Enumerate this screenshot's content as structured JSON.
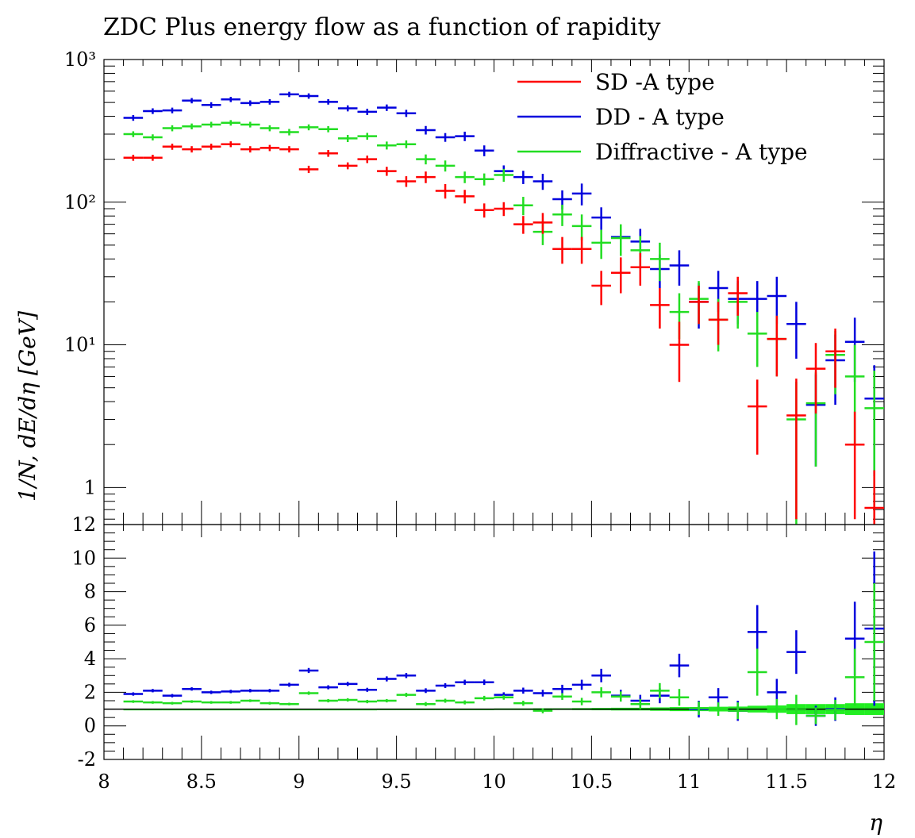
{
  "chart_data": [
    {
      "type": "scatter",
      "title": "ZDC Plus energy flow as a function of rapidity",
      "ylabel": "1/N, dE/dη [GeV]",
      "yscale": "log",
      "ylim": [
        0.55,
        1000
      ],
      "xlim": [
        8,
        12
      ],
      "yticks": [
        "10³",
        "10²",
        "10¹",
        "1"
      ],
      "ytick_values": [
        1000,
        100,
        10,
        1
      ],
      "grid": false,
      "legend": "top-right",
      "colors": {
        "SD -A type": "#ff0000",
        "DD - A type": "#0000dd",
        "Diffractive - A type": "#22dd22"
      },
      "series": [
        {
          "name": "SD -A type",
          "color": "#ff0000",
          "x": [
            8.15,
            8.25,
            8.35,
            8.45,
            8.55,
            8.65,
            8.75,
            8.85,
            8.95,
            9.05,
            9.15,
            9.25,
            9.35,
            9.45,
            9.55,
            9.65,
            9.75,
            9.85,
            9.95,
            10.05,
            10.15,
            10.25,
            10.35,
            10.45,
            10.55,
            10.65,
            10.75,
            10.85,
            10.95,
            11.05,
            11.15,
            11.25,
            11.35,
            11.45,
            11.55,
            11.65,
            11.75,
            11.85,
            11.95
          ],
          "y": [
            205,
            205,
            245,
            235,
            245,
            255,
            235,
            240,
            235,
            170,
            220,
            180,
            200,
            165,
            140,
            150,
            120,
            110,
            88,
            90,
            70,
            72,
            47,
            47,
            26,
            32,
            35,
            19,
            10,
            20,
            15,
            23,
            3.7,
            11,
            3.2,
            6.8,
            9,
            2,
            0.72
          ],
          "yerr": [
            10,
            10,
            12,
            12,
            12,
            12,
            12,
            12,
            12,
            10,
            12,
            10,
            12,
            12,
            12,
            14,
            14,
            12,
            10,
            10,
            10,
            12,
            10,
            10,
            7,
            9,
            9,
            6,
            4.5,
            6,
            5,
            7,
            2,
            5,
            2.6,
            3.5,
            4,
            1.4,
            0.6
          ]
        },
        {
          "name": "DD - A type",
          "color": "#0000dd",
          "x": [
            8.15,
            8.25,
            8.35,
            8.45,
            8.55,
            8.65,
            8.75,
            8.85,
            8.95,
            9.05,
            9.15,
            9.25,
            9.35,
            9.45,
            9.55,
            9.65,
            9.75,
            9.85,
            9.95,
            10.05,
            10.15,
            10.25,
            10.35,
            10.45,
            10.55,
            10.65,
            10.75,
            10.85,
            10.95,
            11.05,
            11.15,
            11.25,
            11.35,
            11.45,
            11.55,
            11.65,
            11.75,
            11.85,
            11.95
          ],
          "y": [
            390,
            435,
            440,
            515,
            480,
            525,
            495,
            505,
            570,
            555,
            505,
            455,
            430,
            460,
            420,
            320,
            285,
            290,
            230,
            165,
            150,
            140,
            105,
            115,
            78,
            57,
            53,
            34,
            36,
            20,
            25,
            21,
            21,
            22,
            14,
            3.8,
            7.8,
            10.5,
            4.2
          ],
          "yerr": [
            18,
            20,
            20,
            22,
            22,
            22,
            22,
            22,
            24,
            24,
            22,
            22,
            22,
            24,
            24,
            22,
            20,
            22,
            20,
            16,
            16,
            18,
            16,
            20,
            14,
            12,
            12,
            9,
            10,
            7,
            8,
            7,
            7,
            8,
            6,
            2.4,
            4,
            5,
            3
          ]
        },
        {
          "name": "Diffractive - A type",
          "color": "#22dd22",
          "x": [
            8.15,
            8.25,
            8.35,
            8.45,
            8.55,
            8.65,
            8.75,
            8.85,
            8.95,
            9.05,
            9.15,
            9.25,
            9.35,
            9.45,
            9.55,
            9.65,
            9.75,
            9.85,
            9.95,
            10.05,
            10.15,
            10.25,
            10.35,
            10.45,
            10.55,
            10.65,
            10.75,
            10.85,
            10.95,
            11.05,
            11.15,
            11.25,
            11.35,
            11.45,
            11.55,
            11.65,
            11.75,
            11.85,
            11.95
          ],
          "y": [
            300,
            285,
            330,
            340,
            350,
            360,
            350,
            330,
            310,
            335,
            325,
            280,
            290,
            250,
            255,
            200,
            180,
            150,
            145,
            155,
            95,
            62,
            82,
            68,
            52,
            56,
            46,
            40,
            17,
            21,
            15,
            20,
            12,
            11,
            3.0,
            3.9,
            8.5,
            6,
            3.6
          ],
          "yerr": [
            14,
            14,
            16,
            16,
            16,
            16,
            16,
            16,
            16,
            16,
            16,
            16,
            16,
            16,
            16,
            16,
            16,
            14,
            14,
            16,
            14,
            12,
            14,
            14,
            12,
            14,
            12,
            12,
            6,
            7,
            6,
            7,
            5,
            5,
            2.5,
            2.5,
            4,
            4,
            3
          ]
        }
      ]
    },
    {
      "type": "scatter",
      "title": "",
      "xlabel": "η",
      "xlim": [
        8,
        12
      ],
      "ylim": [
        -2,
        12
      ],
      "xticks": [
        "8",
        "8.5",
        "9",
        "9.5",
        "10",
        "10.5",
        "11",
        "11.5",
        "12"
      ],
      "xtick_values": [
        8,
        8.5,
        9,
        9.5,
        10,
        10.5,
        11,
        11.5,
        12
      ],
      "yticks": [
        "12",
        "10",
        "8",
        "6",
        "4",
        "2",
        "0",
        "-2"
      ],
      "ytick_values": [
        12,
        10,
        8,
        6,
        4,
        2,
        0,
        -2
      ],
      "reference_line": 1,
      "band_color": "#22ee22",
      "band_halfwidth": [
        0.02,
        0.02,
        0.02,
        0.02,
        0.02,
        0.02,
        0.02,
        0.02,
        0.02,
        0.02,
        0.02,
        0.02,
        0.02,
        0.03,
        0.03,
        0.03,
        0.03,
        0.03,
        0.03,
        0.04,
        0.04,
        0.05,
        0.05,
        0.06,
        0.07,
        0.08,
        0.08,
        0.1,
        0.12,
        0.12,
        0.14,
        0.15,
        0.2,
        0.22,
        0.3,
        0.3,
        0.3,
        0.35,
        0.35
      ],
      "series": [
        {
          "name": "DD - A type",
          "color": "#0000dd",
          "x": [
            8.15,
            8.25,
            8.35,
            8.45,
            8.55,
            8.65,
            8.75,
            8.85,
            8.95,
            9.05,
            9.15,
            9.25,
            9.35,
            9.45,
            9.55,
            9.65,
            9.75,
            9.85,
            9.95,
            10.05,
            10.15,
            10.25,
            10.35,
            10.45,
            10.55,
            10.65,
            10.75,
            10.85,
            10.95,
            11.05,
            11.15,
            11.25,
            11.35,
            11.45,
            11.55,
            11.65,
            11.75,
            11.85,
            11.95
          ],
          "y": [
            1.9,
            2.1,
            1.8,
            2.2,
            2.0,
            2.05,
            2.1,
            2.1,
            2.45,
            3.3,
            2.3,
            2.5,
            2.15,
            2.8,
            3.0,
            2.1,
            2.4,
            2.6,
            2.6,
            1.85,
            2.1,
            1.95,
            2.2,
            2.45,
            3.0,
            1.8,
            1.5,
            1.8,
            3.6,
            1.0,
            1.7,
            0.9,
            5.6,
            2.0,
            4.4,
            0.6,
            1.0,
            5.2,
            5.8
          ],
          "yerr": [
            0.1,
            0.1,
            0.1,
            0.1,
            0.1,
            0.1,
            0.1,
            0.1,
            0.12,
            0.15,
            0.12,
            0.12,
            0.12,
            0.15,
            0.15,
            0.14,
            0.14,
            0.15,
            0.16,
            0.15,
            0.18,
            0.2,
            0.25,
            0.3,
            0.4,
            0.35,
            0.35,
            0.45,
            0.7,
            0.5,
            0.55,
            0.6,
            1.6,
            0.8,
            1.3,
            0.6,
            0.7,
            2.2,
            4.6
          ]
        },
        {
          "name": "Diffractive - A type",
          "color": "#22dd22",
          "x": [
            8.15,
            8.25,
            8.35,
            8.45,
            8.55,
            8.65,
            8.75,
            8.85,
            8.95,
            9.05,
            9.15,
            9.25,
            9.35,
            9.45,
            9.55,
            9.65,
            9.75,
            9.85,
            9.95,
            10.05,
            10.15,
            10.25,
            10.35,
            10.45,
            10.55,
            10.65,
            10.75,
            10.85,
            10.95,
            11.05,
            11.15,
            11.25,
            11.35,
            11.45,
            11.55,
            11.65,
            11.75,
            11.85,
            11.95
          ],
          "y": [
            1.45,
            1.4,
            1.35,
            1.45,
            1.4,
            1.4,
            1.5,
            1.35,
            1.3,
            1.95,
            1.5,
            1.55,
            1.45,
            1.5,
            1.85,
            1.3,
            1.5,
            1.4,
            1.65,
            1.7,
            1.35,
            0.9,
            1.75,
            1.45,
            2.0,
            1.75,
            1.3,
            2.1,
            1.7,
            1.05,
            1.0,
            0.9,
            3.2,
            1.0,
            0.95,
            0.6,
            0.95,
            2.9,
            5.0
          ],
          "yerr": [
            0.08,
            0.08,
            0.08,
            0.08,
            0.08,
            0.08,
            0.08,
            0.08,
            0.08,
            0.1,
            0.1,
            0.1,
            0.1,
            0.1,
            0.12,
            0.12,
            0.12,
            0.12,
            0.14,
            0.14,
            0.15,
            0.15,
            0.2,
            0.22,
            0.3,
            0.3,
            0.3,
            0.45,
            0.5,
            0.4,
            0.4,
            0.5,
            1.4,
            0.6,
            0.9,
            0.5,
            0.6,
            1.7,
            3.5
          ]
        }
      ]
    }
  ]
}
